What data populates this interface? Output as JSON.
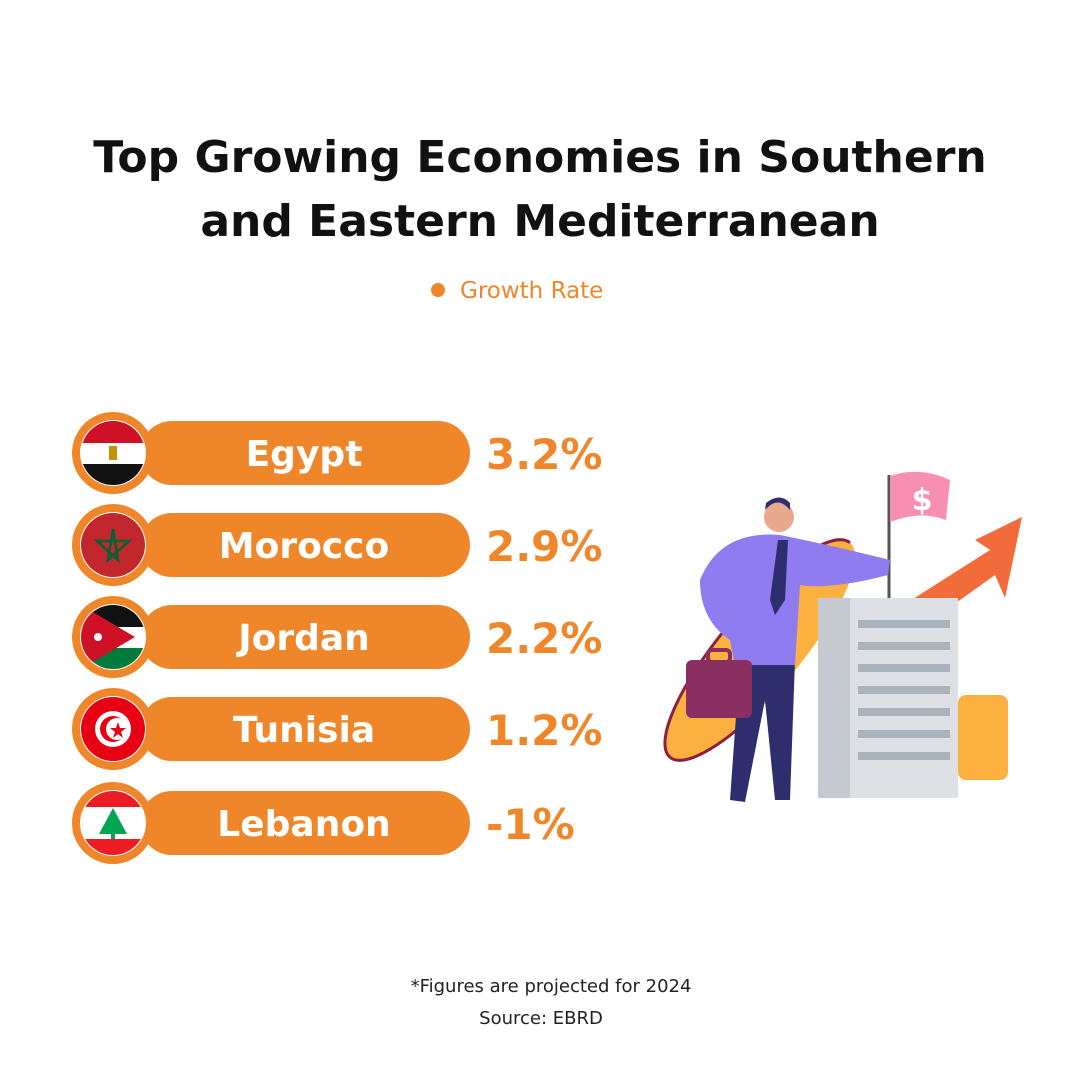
{
  "title": "Top Growing Economies in Southern and Eastern Mediterranean",
  "legend": "Growth Rate",
  "items": [
    {
      "name": "Egypt",
      "value": "3.2%"
    },
    {
      "name": "Morocco",
      "value": "2.9%"
    },
    {
      "name": "Jordan",
      "value": "2.2%"
    },
    {
      "name": "Tunisia",
      "value": "1.2%"
    },
    {
      "name": "Lebanon",
      "value": "-1%"
    }
  ],
  "footnote": "*Figures are projected for 2024",
  "source": "Source: EBRD"
}
